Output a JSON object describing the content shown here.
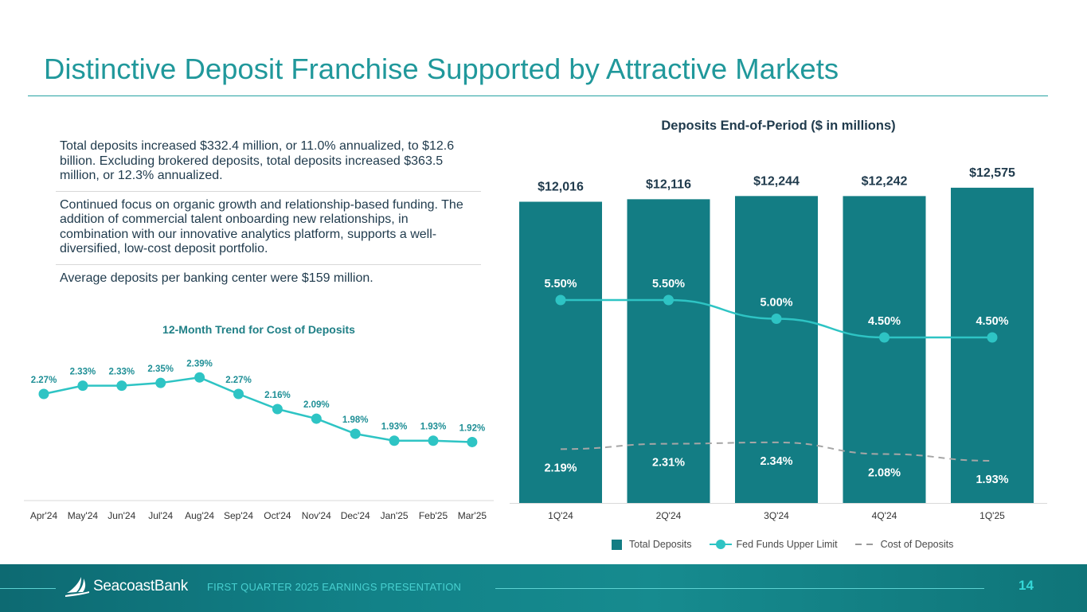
{
  "page": {
    "title": "Distinctive Deposit Franchise Supported by Attractive Markets",
    "bullets": [
      "Total deposits increased $332.4 million, or 11.0% annualized, to $12.6 billion. Excluding brokered deposits, total deposits increased $363.5 million, or 12.3% annualized.",
      "Continued focus on organic growth and relationship-based funding. The addition of commercial talent onboarding new relationships, in combination with our innovative analytics platform, supports a well-diversified, low-cost deposit portfolio.",
      "Average deposits per banking center were $159 million."
    ]
  },
  "chart_data": [
    {
      "type": "line",
      "title": "12-Month Trend for Cost of Deposits",
      "categories": [
        "Apr'24",
        "May'24",
        "Jun'24",
        "Jul'24",
        "Aug'24",
        "Sep'24",
        "Oct'24",
        "Nov'24",
        "Dec'24",
        "Jan'25",
        "Feb'25",
        "Mar'25"
      ],
      "values": [
        2.27,
        2.33,
        2.33,
        2.35,
        2.39,
        2.27,
        2.16,
        2.09,
        1.98,
        1.93,
        1.93,
        1.92
      ],
      "labels": [
        "2.27%",
        "2.33%",
        "2.33%",
        "2.35%",
        "2.39%",
        "2.27%",
        "2.16%",
        "2.09%",
        "1.98%",
        "1.93%",
        "1.93%",
        "1.92%"
      ],
      "ylim": [
        1.5,
        2.6
      ],
      "xlabel": "",
      "ylabel": "",
      "color": "#2ec4c4",
      "label_color": "#1f8f96"
    },
    {
      "type": "bar",
      "title": "Deposits End-of-Period ($ in millions)",
      "categories": [
        "1Q'24",
        "2Q'24",
        "3Q'24",
        "4Q'24",
        "1Q'25"
      ],
      "series": [
        {
          "name": "Total Deposits",
          "type": "bar",
          "values": [
            12016,
            12116,
            12244,
            12242,
            12575
          ],
          "labels": [
            "$12,016",
            "$12,116",
            "$12,244",
            "$12,242",
            "$12,575"
          ],
          "color": "#137d84"
        },
        {
          "name": "Fed Funds Upper Limit",
          "type": "line",
          "values": [
            5.5,
            5.5,
            5.0,
            4.5,
            4.5
          ],
          "labels": [
            "5.50%",
            "5.50%",
            "5.00%",
            "4.50%",
            "4.50%"
          ],
          "color": "#2ec4c4"
        },
        {
          "name": "Cost of Deposits",
          "type": "dashed-line",
          "values": [
            2.19,
            2.31,
            2.34,
            2.08,
            1.93
          ],
          "labels": [
            "2.19%",
            "2.31%",
            "2.34%",
            "2.08%",
            "1.93%"
          ],
          "color": "#a6a6a6"
        }
      ],
      "bar_ylim": [
        0,
        13000
      ],
      "rate_ylim": [
        0,
        7.5
      ],
      "label_color": "#1f3a4c",
      "legend": "bottom"
    }
  ],
  "footer": {
    "brand": "SeacoastBank",
    "presentation": "FIRST QUARTER 2025 EARNINGS PRESENTATION",
    "page_number": "14"
  }
}
